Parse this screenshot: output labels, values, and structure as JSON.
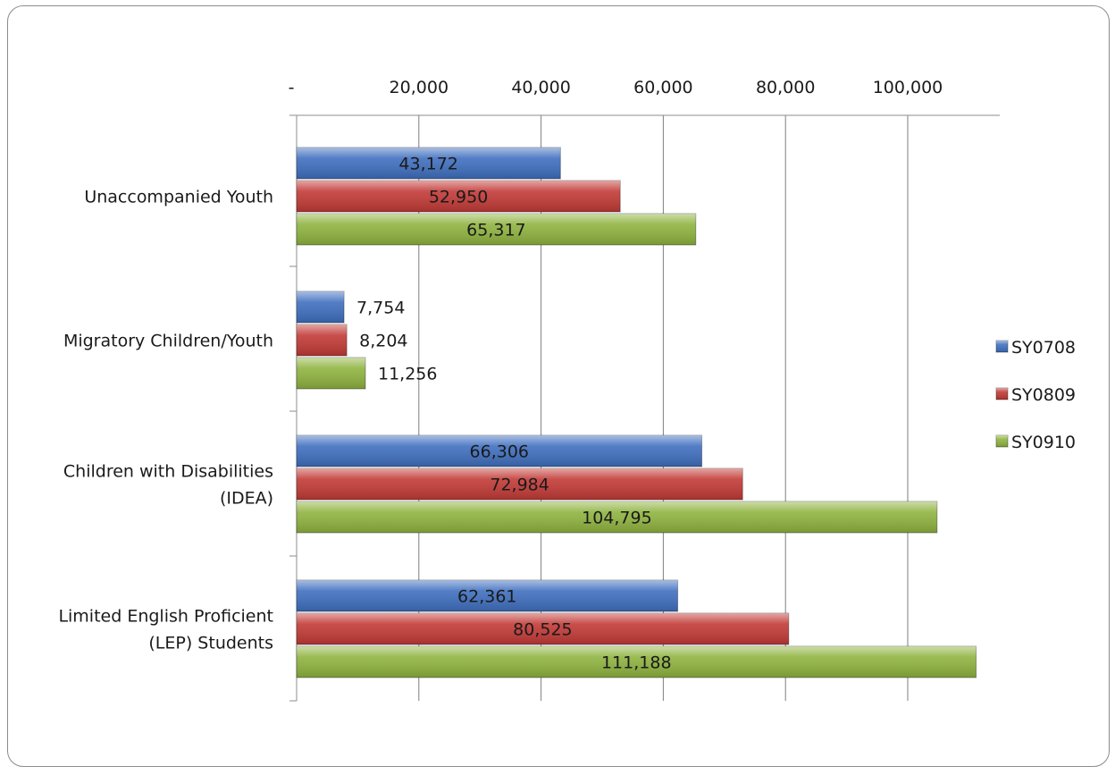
{
  "chart_data": {
    "type": "bar",
    "orientation": "horizontal",
    "title": "",
    "xlabel": "",
    "ylabel": "",
    "xlim": [
      0,
      115000
    ],
    "x_ticks": [
      {
        "value": 0,
        "label": "-"
      },
      {
        "value": 20000,
        "label": "20,000"
      },
      {
        "value": 40000,
        "label": "40,000"
      },
      {
        "value": 60000,
        "label": "60,000"
      },
      {
        "value": 80000,
        "label": "80,000"
      },
      {
        "value": 100000,
        "label": "100,000"
      }
    ],
    "x_axis_position": "top",
    "grid": true,
    "legend_position": "right",
    "categories": [
      [
        "Unaccompanied Youth"
      ],
      [
        "Migratory Children/Youth"
      ],
      [
        "Children with Disabilities",
        "(IDEA)"
      ],
      [
        "Limited English Proficient",
        "(LEP) Students"
      ]
    ],
    "series": [
      {
        "name": "SY0708",
        "color": "#3f6fbf",
        "values": [
          43172,
          7754,
          66306,
          62361
        ],
        "labels": [
          "43,172",
          "7,754",
          "66,306",
          "62,361"
        ]
      },
      {
        "name": "SY0809",
        "color": "#c23a36",
        "values": [
          52950,
          8204,
          72984,
          80525
        ],
        "labels": [
          "52,950",
          "8,204",
          "72,984",
          "80,525"
        ]
      },
      {
        "name": "SY0910",
        "color": "#8fb33f",
        "values": [
          65317,
          11256,
          104795,
          111188
        ],
        "labels": [
          "65,317",
          "11,256",
          "104,795",
          "111,188"
        ]
      }
    ]
  }
}
